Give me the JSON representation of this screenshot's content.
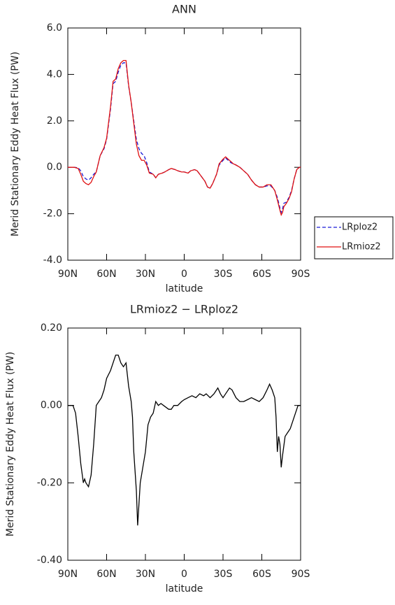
{
  "chart_data": [
    {
      "type": "line",
      "title": "ANN",
      "xlabel": "latitude",
      "ylabel": "Merid Stationary Eddy Heat Flux (PW)",
      "x": [
        90,
        85,
        82,
        80,
        78,
        76,
        74,
        72,
        70,
        68,
        65,
        62,
        60,
        57,
        55,
        53,
        51,
        49,
        47,
        45,
        43,
        41,
        39,
        37,
        35,
        33,
        31,
        29,
        27,
        24,
        22,
        20,
        17,
        15,
        12,
        10,
        7,
        5,
        2,
        0,
        -3,
        -5,
        -8,
        -10,
        -12,
        -14,
        -16,
        -18,
        -20,
        -22,
        -25,
        -27,
        -30,
        -32,
        -34,
        -36,
        -38,
        -40,
        -43,
        -46,
        -49,
        -52,
        -55,
        -58,
        -61,
        -64,
        -67,
        -70,
        -72,
        -74,
        -75,
        -76,
        -77,
        -79,
        -81,
        -83,
        -85,
        -87,
        -89,
        -90
      ],
      "series": [
        {
          "name": "LRploz2",
          "color": "#1a1ad6",
          "linestyle": "dashed",
          "values": [
            0,
            0,
            -0.02,
            -0.15,
            -0.4,
            -0.5,
            -0.55,
            -0.45,
            -0.3,
            -0.2,
            0.5,
            0.8,
            1.2,
            2.5,
            3.6,
            3.7,
            4.1,
            4.4,
            4.5,
            4.5,
            3.5,
            2.8,
            2.0,
            1.2,
            0.8,
            0.6,
            0.5,
            0.2,
            -0.2,
            -0.3,
            -0.45,
            -0.3,
            -0.25,
            -0.2,
            -0.1,
            -0.05,
            -0.1,
            -0.15,
            -0.2,
            -0.2,
            -0.25,
            -0.15,
            -0.1,
            -0.15,
            -0.3,
            -0.45,
            -0.6,
            -0.85,
            -0.9,
            -0.7,
            -0.3,
            0.1,
            0.3,
            0.4,
            0.3,
            0.2,
            0.15,
            0.1,
            0.0,
            -0.15,
            -0.3,
            -0.55,
            -0.75,
            -0.85,
            -0.85,
            -0.8,
            -0.8,
            -1.0,
            -1.3,
            -1.75,
            -1.95,
            -1.8,
            -1.55,
            -1.5,
            -1.3,
            -1.0,
            -0.5,
            -0.1,
            0,
            0
          ]
        },
        {
          "name": "LRmioz2",
          "color": "#e01010",
          "linestyle": "solid",
          "values": [
            0,
            0,
            -0.05,
            -0.3,
            -0.6,
            -0.7,
            -0.75,
            -0.65,
            -0.4,
            -0.2,
            0.5,
            0.85,
            1.25,
            2.6,
            3.7,
            3.8,
            4.25,
            4.5,
            4.6,
            4.6,
            3.55,
            2.8,
            1.9,
            1.0,
            0.5,
            0.3,
            0.3,
            0.1,
            -0.25,
            -0.3,
            -0.45,
            -0.3,
            -0.25,
            -0.2,
            -0.1,
            -0.05,
            -0.1,
            -0.15,
            -0.2,
            -0.2,
            -0.25,
            -0.15,
            -0.1,
            -0.15,
            -0.3,
            -0.45,
            -0.6,
            -0.85,
            -0.9,
            -0.7,
            -0.3,
            0.15,
            0.35,
            0.45,
            0.35,
            0.25,
            0.15,
            0.1,
            0.0,
            -0.15,
            -0.3,
            -0.55,
            -0.75,
            -0.85,
            -0.85,
            -0.75,
            -0.75,
            -1.0,
            -1.4,
            -1.85,
            -2.05,
            -1.95,
            -1.7,
            -1.55,
            -1.35,
            -1.05,
            -0.5,
            -0.1,
            0,
            0
          ]
        }
      ],
      "xlim": [
        90,
        -90
      ],
      "xticks": [
        {
          "value": 90,
          "label": "90N"
        },
        {
          "value": 60,
          "label": "60N"
        },
        {
          "value": 30,
          "label": "30N"
        },
        0,
        {
          "value": -30,
          "label": "30S"
        },
        {
          "value": -60,
          "label": "60S"
        },
        {
          "value": -90,
          "label": "90S"
        }
      ],
      "ylim": [
        -4,
        6
      ],
      "yticks": [
        {
          "value": -4,
          "label": "-4.0"
        },
        {
          "value": -2,
          "label": "-2.0"
        },
        {
          "value": 0,
          "label": "0.0"
        },
        {
          "value": 2,
          "label": "2.0"
        },
        {
          "value": 4,
          "label": "4.0"
        },
        {
          "value": 6,
          "label": "6.0"
        }
      ],
      "legend": "right"
    },
    {
      "type": "line",
      "title": "LRmioz2 − LRploz2",
      "xlabel": "latitude",
      "ylabel": "Merid Stationary Eddy Heat Flux (PW)",
      "x": [
        90,
        86,
        84,
        82,
        80,
        78,
        77,
        76,
        74,
        72,
        70,
        68,
        66,
        64,
        62,
        60,
        57,
        55,
        53,
        51,
        49,
        47,
        45,
        43,
        41,
        40,
        39,
        37,
        36,
        34,
        32,
        30,
        28,
        26,
        24,
        22,
        20,
        18,
        16,
        14,
        12,
        10,
        8,
        5,
        2,
        0,
        -3,
        -6,
        -9,
        -12,
        -15,
        -17,
        -20,
        -23,
        -26,
        -28,
        -30,
        -32,
        -35,
        -37,
        -40,
        -43,
        -46,
        -49,
        -52,
        -55,
        -58,
        -61,
        -64,
        -66,
        -68,
        -70,
        -71,
        -72,
        -73,
        -74,
        -75,
        -76,
        -78,
        -80,
        -82,
        -84,
        -86,
        -88,
        -90
      ],
      "series": [
        {
          "color": "#000000",
          "linestyle": "solid",
          "values": [
            0,
            0,
            -0.02,
            -0.08,
            -0.15,
            -0.2,
            -0.19,
            -0.2,
            -0.21,
            -0.18,
            -0.1,
            0.0,
            0.01,
            0.02,
            0.04,
            0.07,
            0.09,
            0.11,
            0.13,
            0.13,
            0.11,
            0.1,
            0.11,
            0.05,
            0.01,
            -0.03,
            -0.12,
            -0.22,
            -0.31,
            -0.2,
            -0.16,
            -0.12,
            -0.05,
            -0.03,
            -0.02,
            0.01,
            0.0,
            0.005,
            0.0,
            -0.005,
            -0.01,
            -0.01,
            0.0,
            0.0,
            0.01,
            0.015,
            0.02,
            0.025,
            0.02,
            0.03,
            0.025,
            0.03,
            0.02,
            0.03,
            0.045,
            0.03,
            0.02,
            0.03,
            0.045,
            0.04,
            0.02,
            0.01,
            0.01,
            0.015,
            0.02,
            0.015,
            0.01,
            0.02,
            0.04,
            0.055,
            0.04,
            0.02,
            -0.03,
            -0.12,
            -0.08,
            -0.1,
            -0.16,
            -0.13,
            -0.08,
            -0.07,
            -0.06,
            -0.04,
            -0.02,
            0.0,
            0.0
          ]
        }
      ],
      "xlim": [
        90,
        -90
      ],
      "xticks": [
        {
          "value": 90,
          "label": "90N"
        },
        {
          "value": 60,
          "label": "60N"
        },
        {
          "value": 30,
          "label": "30N"
        },
        0,
        {
          "value": -30,
          "label": "30S"
        },
        {
          "value": -60,
          "label": "60S"
        },
        {
          "value": -90,
          "label": "90S"
        }
      ],
      "ylim": [
        -0.4,
        0.2
      ],
      "yticks": [
        {
          "value": -0.4,
          "label": "-0.40"
        },
        {
          "value": -0.2,
          "label": "-0.20"
        },
        {
          "value": 0,
          "label": "0.00"
        },
        {
          "value": 0.2,
          "label": "0.20"
        }
      ]
    }
  ]
}
